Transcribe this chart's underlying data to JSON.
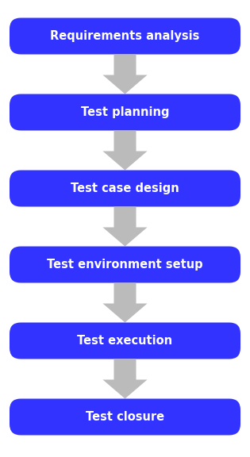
{
  "steps": [
    "Requirements analysis",
    "Test planning",
    "Test case design",
    "Test environment setup",
    "Test execution",
    "Test closure"
  ],
  "box_color": "#3333FF",
  "text_color": "#FFFFFF",
  "arrow_color": "#BBBBBB",
  "background_color": "#FFFFFF",
  "fig_width": 3.15,
  "fig_height": 5.76,
  "dpi": 100,
  "font_size": 10.5
}
